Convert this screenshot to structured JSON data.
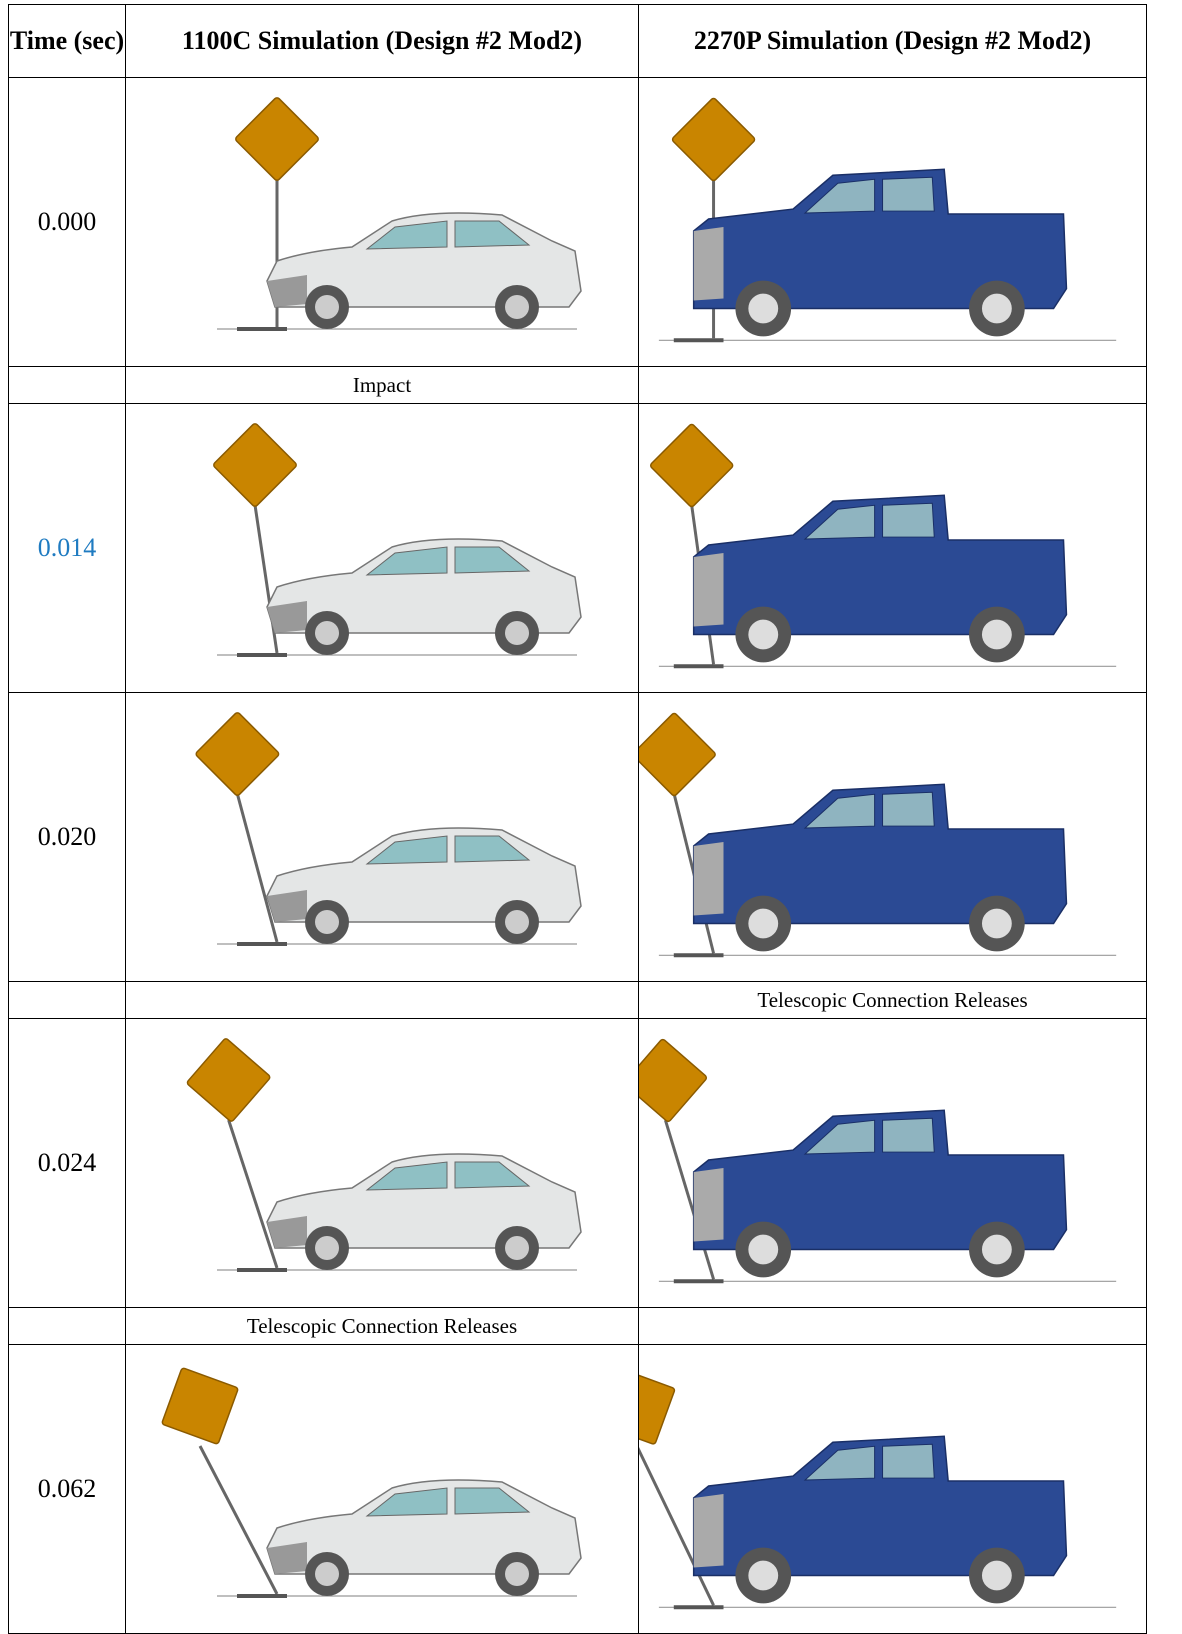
{
  "table": {
    "headers": [
      "Time (sec)",
      "1100C Simulation (Design #2 Mod2)",
      "2270P Simulation (Design #2 Mod2)"
    ],
    "rows": [
      {
        "time": "0.000"
      },
      {
        "note_1100c": "Impact"
      },
      {
        "time": "0.014"
      },
      {
        "time": "0.020"
      },
      {
        "note_2270p": "Telescopic Connection Releases"
      },
      {
        "time": "0.024"
      },
      {
        "note_1100c": "Telescopic Connection Releases"
      },
      {
        "time": "0.062"
      }
    ]
  }
}
